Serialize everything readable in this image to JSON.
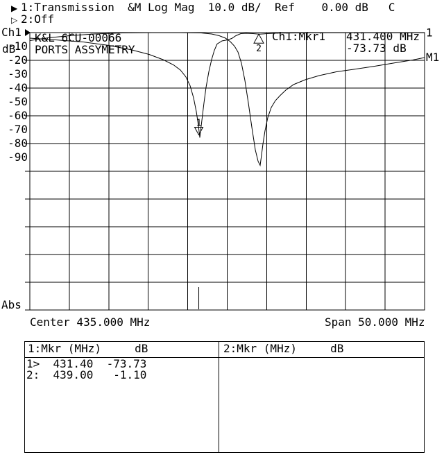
{
  "header": {
    "trace1": {
      "icon": "▶",
      "label": "1:Transmission  &M Log Mag  10.0 dB/  Ref    0.00 dB   C"
    },
    "trace2": {
      "icon": "▷",
      "label": "2:Off"
    }
  },
  "y_axis": {
    "channel": "Ch1",
    "unit": "dB",
    "bottom_label": "Abs"
  },
  "annotations": {
    "device_line1": "K&L 6CU-00066",
    "device_line2": "PORTS ASSYMETRY",
    "marker_readout_label": "Ch1:Mkr1",
    "marker_readout_freq": "431.400 MHz",
    "marker_readout_level": "-73.73 dB"
  },
  "x_axis": {
    "center": "Center 435.000 MHz",
    "span": "Span 50.000 MHz"
  },
  "marker_table": {
    "left": {
      "header": "1:Mkr (MHz)     dB",
      "rows": [
        "1>  431.40  -73.73",
        "2:  439.00   -1.10"
      ]
    },
    "right": {
      "header": "2:Mkr (MHz)     dB",
      "rows": []
    }
  },
  "chart_data": {
    "type": "line",
    "center_mhz": 435.0,
    "span_mhz": 50.0,
    "xlim": [
      410.0,
      460.0
    ],
    "ylim": [
      -100,
      0
    ],
    "db_per_div": 10.0,
    "ref_db": 0.0,
    "yticks": [
      "-10",
      "-20",
      "-30",
      "-40",
      "-50",
      "-60",
      "-70",
      "-80",
      "-90"
    ],
    "grid": true,
    "series": [
      {
        "name": "trace-1",
        "end_label": "1",
        "points": [
          [
            410.0,
            -4.0
          ],
          [
            413.25,
            -5.25
          ],
          [
            416.77,
            -6.75
          ],
          [
            420.02,
            -9.25
          ],
          [
            422.92,
            -12.5
          ],
          [
            425.11,
            -15.75
          ],
          [
            426.87,
            -19.5
          ],
          [
            428.19,
            -23.25
          ],
          [
            429.07,
            -27.0
          ],
          [
            429.77,
            -32.0
          ],
          [
            430.3,
            -38.25
          ],
          [
            430.74,
            -47.0
          ],
          [
            431.09,
            -57.0
          ],
          [
            431.35,
            -67.0
          ],
          [
            431.53,
            -75.75
          ],
          [
            431.79,
            -63.25
          ],
          [
            432.06,
            -50.75
          ],
          [
            432.32,
            -39.5
          ],
          [
            432.67,
            -28.25
          ],
          [
            433.02,
            -19.5
          ],
          [
            433.37,
            -12.75
          ],
          [
            433.72,
            -8.25
          ],
          [
            434.34,
            -6.0
          ],
          [
            435.04,
            -5.25
          ],
          [
            435.57,
            -4.25
          ],
          [
            436.1,
            -2.25
          ],
          [
            436.71,
            -0.75
          ],
          [
            437.41,
            -0.5
          ],
          [
            438.29,
            -0.75
          ],
          [
            439.08,
            -1.1
          ],
          [
            440.05,
            -0.75
          ],
          [
            441.37,
            -0.4
          ],
          [
            444.0,
            -0.25
          ],
          [
            447.52,
            -0.15
          ],
          [
            451.91,
            -0.15
          ],
          [
            456.3,
            -0.1
          ],
          [
            460.0,
            -0.15
          ]
        ]
      },
      {
        "name": "trace-memory",
        "end_label": "M1",
        "points": [
          [
            410.0,
            -5.75
          ],
          [
            412.37,
            -3.75
          ],
          [
            415.01,
            -2.25
          ],
          [
            418.08,
            -1.0
          ],
          [
            421.69,
            -0.25
          ],
          [
            425.55,
            -0.05
          ],
          [
            429.07,
            -0.05
          ],
          [
            431.7,
            -0.25
          ],
          [
            433.02,
            -1.0
          ],
          [
            433.99,
            -2.25
          ],
          [
            434.78,
            -4.0
          ],
          [
            435.39,
            -6.5
          ],
          [
            435.92,
            -9.75
          ],
          [
            436.36,
            -14.0
          ],
          [
            436.8,
            -22.0
          ],
          [
            437.24,
            -34.5
          ],
          [
            437.68,
            -50.75
          ],
          [
            438.12,
            -68.25
          ],
          [
            438.56,
            -84.5
          ],
          [
            438.91,
            -92.75
          ],
          [
            439.17,
            -95.75
          ],
          [
            439.35,
            -88.25
          ],
          [
            439.52,
            -80.75
          ],
          [
            439.79,
            -70.75
          ],
          [
            440.14,
            -61.25
          ],
          [
            440.58,
            -54.0
          ],
          [
            441.11,
            -49.0
          ],
          [
            441.72,
            -45.25
          ],
          [
            442.42,
            -41.5
          ],
          [
            443.39,
            -37.5
          ],
          [
            444.88,
            -34.0
          ],
          [
            446.64,
            -31.0
          ],
          [
            448.84,
            -28.25
          ],
          [
            451.03,
            -26.5
          ],
          [
            453.67,
            -24.25
          ],
          [
            456.3,
            -21.75
          ],
          [
            458.5,
            -19.75
          ],
          [
            460.0,
            -18.0
          ]
        ]
      }
    ],
    "markers": [
      {
        "label": "1",
        "mhz": 431.4,
        "db": -73.73,
        "shape": "down",
        "bottom_indicator": true
      },
      {
        "label": "2",
        "mhz": 439.0,
        "db": -1.1,
        "shape": "up",
        "bottom_indicator": false
      }
    ]
  }
}
